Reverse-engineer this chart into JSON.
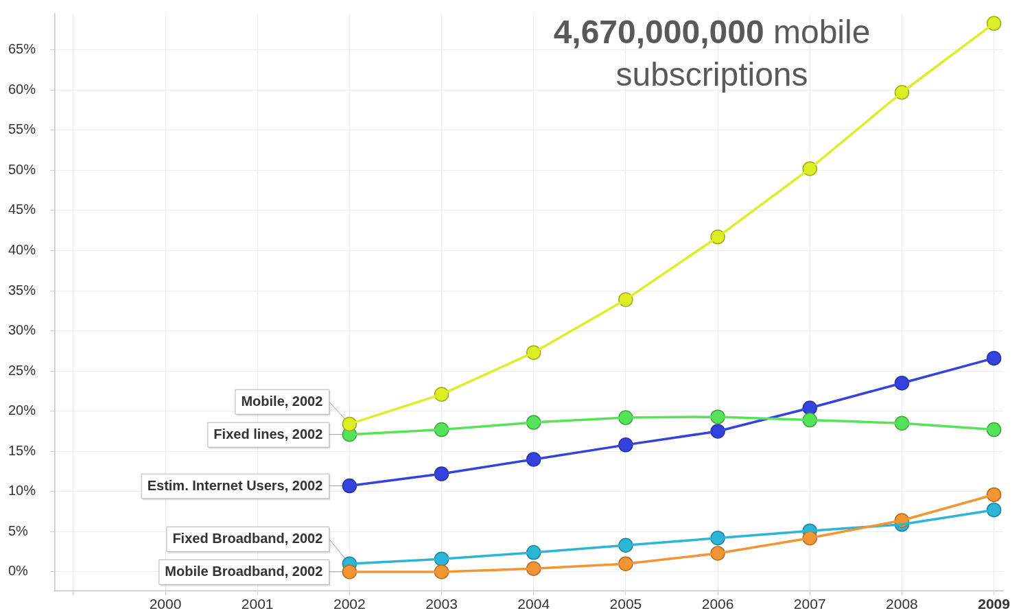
{
  "chart_data": {
    "type": "line",
    "annotations": [
      "4,670,000,000 mobile subscriptions"
    ],
    "x": [
      2002,
      2003,
      2004,
      2005,
      2006,
      2007,
      2008,
      2009
    ],
    "series": [
      {
        "name": "Mobile, 2002",
        "color": "#dcee24",
        "values": [
          18.4,
          22.1,
          27.3,
          33.9,
          41.7,
          50.2,
          59.7,
          68.3
        ]
      },
      {
        "name": "Fixed lines, 2002",
        "color": "#55e35a",
        "values": [
          17.1,
          17.7,
          18.6,
          19.2,
          19.3,
          18.9,
          18.5,
          17.7
        ]
      },
      {
        "name": "Estim. Internet Users, 2002",
        "color": "#3442de",
        "values": [
          10.7,
          12.2,
          14.0,
          15.8,
          17.5,
          20.4,
          23.5,
          26.6
        ]
      },
      {
        "name": "Mobile Broadband, 2002",
        "color": "#f39533",
        "values": [
          0.0,
          0.0,
          0.4,
          1.0,
          2.3,
          4.2,
          6.4,
          9.6
        ]
      },
      {
        "name": "Fixed Broadband, 2002",
        "color": "#2bb6d8",
        "values": [
          1.0,
          1.6,
          2.4,
          3.3,
          4.2,
          5.1,
          5.9,
          7.7
        ]
      }
    ],
    "xlim": [
      1998.8,
      2009.1
    ],
    "ylim": [
      -2.4,
      69.5
    ],
    "xticks": [
      {
        "value": 1999,
        "label": null
      },
      2000,
      2001,
      2002,
      2003,
      2004,
      2005,
      2006,
      2007,
      2008,
      2009
    ],
    "yticks": [
      {
        "value": 0,
        "label": "0%"
      },
      {
        "value": 5,
        "label": "5%"
      },
      {
        "value": 10,
        "label": "10%"
      },
      {
        "value": 15,
        "label": "15%"
      },
      {
        "value": 20,
        "label": "20%"
      },
      {
        "value": 25,
        "label": "25%"
      },
      {
        "value": 30,
        "label": "30%"
      },
      {
        "value": 35,
        "label": "35%"
      },
      {
        "value": 40,
        "label": "40%"
      },
      {
        "value": 45,
        "label": "45%"
      },
      {
        "value": 50,
        "label": "50%"
      },
      {
        "value": 55,
        "label": "55%"
      },
      {
        "value": 60,
        "label": "60%"
      },
      {
        "value": 65,
        "label": "65%"
      }
    ],
    "grid": true,
    "marker": "circle",
    "line_style": "solid"
  }
}
